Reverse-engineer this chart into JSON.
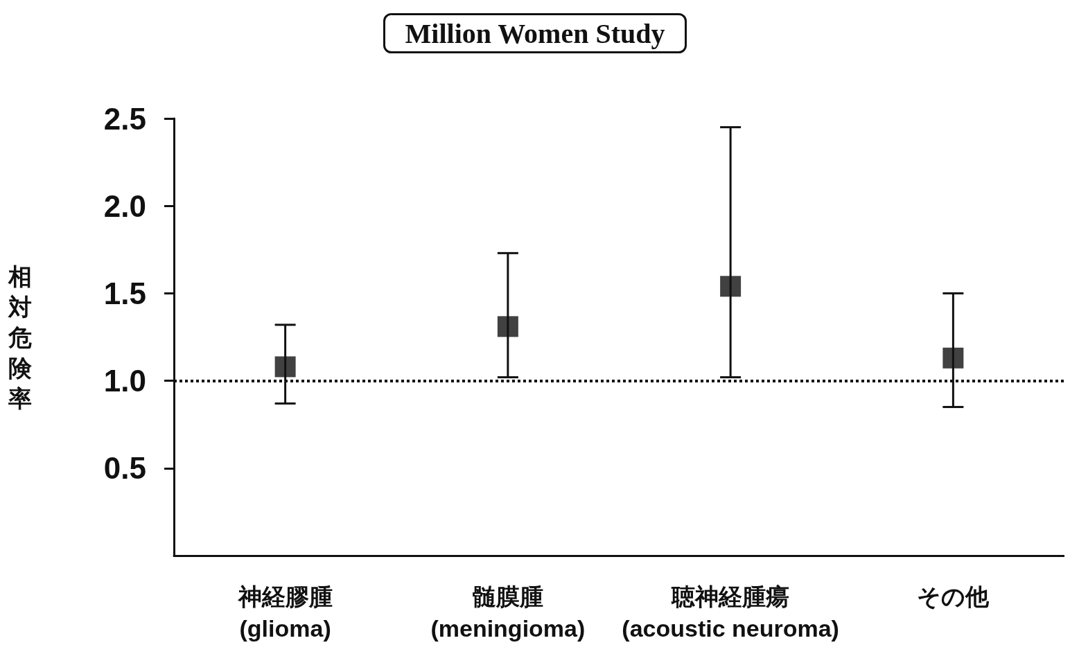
{
  "chart_data": {
    "type": "scatter",
    "title": "Million Women Study",
    "ylabel": "相対危険率",
    "categories": [
      "神経膠腫\n(glioma)",
      "髄膜腫\n(meningioma)",
      "聴神経腫瘍\n(acoustic neuroma)",
      "その他"
    ],
    "values": [
      1.08,
      1.31,
      1.54,
      1.13
    ],
    "errors": [
      [
        0.87,
        1.32
      ],
      [
        1.02,
        1.73
      ],
      [
        1.02,
        2.45
      ],
      [
        0.85,
        1.5
      ]
    ],
    "color": "#111111",
    "marker": "square",
    "ylim": [
      0,
      2.5
    ],
    "yticks": [
      {
        "value": 0.5,
        "label": "0.5"
      },
      {
        "value": 1,
        "label": "1.0"
      },
      {
        "value": 1.5,
        "label": "1.5"
      },
      {
        "value": 2,
        "label": "2.0"
      },
      {
        "value": 2.5,
        "label": "2.5"
      }
    ],
    "ref_lines": [
      {
        "axis": "y",
        "value": 1,
        "line_style": "dotted",
        "color": "#111111"
      }
    ],
    "grid": false
  }
}
